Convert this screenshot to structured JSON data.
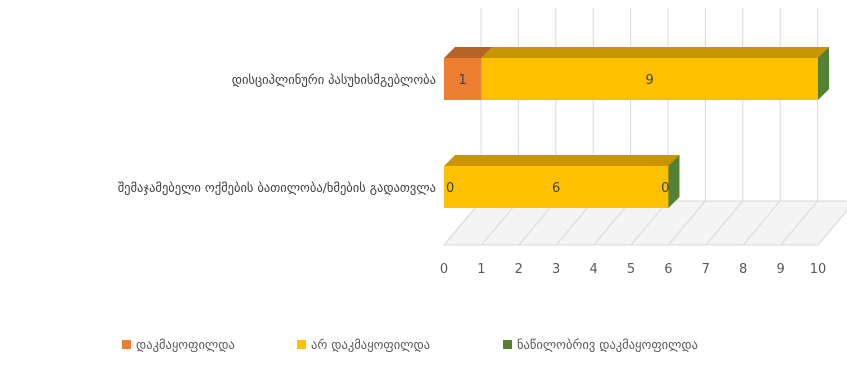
{
  "chart_data": {
    "type": "bar",
    "orientation": "horizontal",
    "stacked": true,
    "style": "3d",
    "categories": [
      "დისციპლინური პასუხისმგებლობა",
      "შემაჯამებელი ოქმების ბათილობა/ხმების გადათვლა"
    ],
    "series": [
      {
        "name": "დაკმაყოფილდა",
        "color": "#ED7D31",
        "values": [
          1,
          0
        ]
      },
      {
        "name": "არ დაკმაყოფილდა",
        "color": "#FFC000",
        "values": [
          9,
          6
        ]
      },
      {
        "name": "ნაწილობრივ დაკმაყოფილდა",
        "color": "#548235",
        "values": [
          0,
          0
        ]
      }
    ],
    "data_labels": [
      [
        "1",
        "0"
      ],
      [
        "9",
        "6"
      ],
      [
        "",
        "0"
      ]
    ],
    "xlim": [
      0,
      10
    ],
    "xticks": [
      0,
      1,
      2,
      3,
      4,
      5,
      6,
      7,
      8,
      9,
      10
    ],
    "grid": true,
    "legend": "bottom",
    "title": "",
    "xlabel": "",
    "ylabel": ""
  }
}
